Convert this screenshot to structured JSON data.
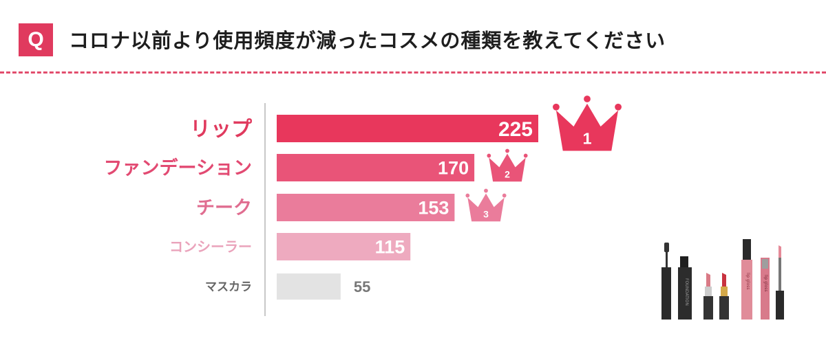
{
  "header": {
    "badge": "Q",
    "question": "コロナ以前より使用頻度が減ったコスメの種類を教えてください"
  },
  "colors": {
    "accent": "#e03a5e",
    "bar_colors": [
      "#e8375c",
      "#e95478",
      "#ea7c9b",
      "#eeaabf",
      "#e3e3e3"
    ],
    "label_colors": [
      "#e03a5e",
      "#e24a72",
      "#e06d90",
      "#eaa3bb",
      "#666666"
    ]
  },
  "chart_data": {
    "type": "bar",
    "orientation": "horizontal",
    "title": "コロナ以前より使用頻度が減ったコスメの種類を教えてください",
    "categories": [
      "リップ",
      "ファンデーション",
      "チーク",
      "コンシーラー",
      "マスカラ"
    ],
    "values": [
      225,
      170,
      153,
      115,
      55
    ],
    "ranks": [
      "1",
      "2",
      "3"
    ],
    "xlabel": "",
    "ylabel": "",
    "grid": false,
    "legend": "none"
  },
  "illustration": {
    "icons": [
      "mascara-icon",
      "foundation-bottle-icon",
      "lipstick-icon",
      "lipstick-icon",
      "lip-gloss-icon",
      "lip-gloss-icon"
    ],
    "labels": [
      "FOUNDATION",
      "lip gloss",
      "lip gloss"
    ]
  }
}
